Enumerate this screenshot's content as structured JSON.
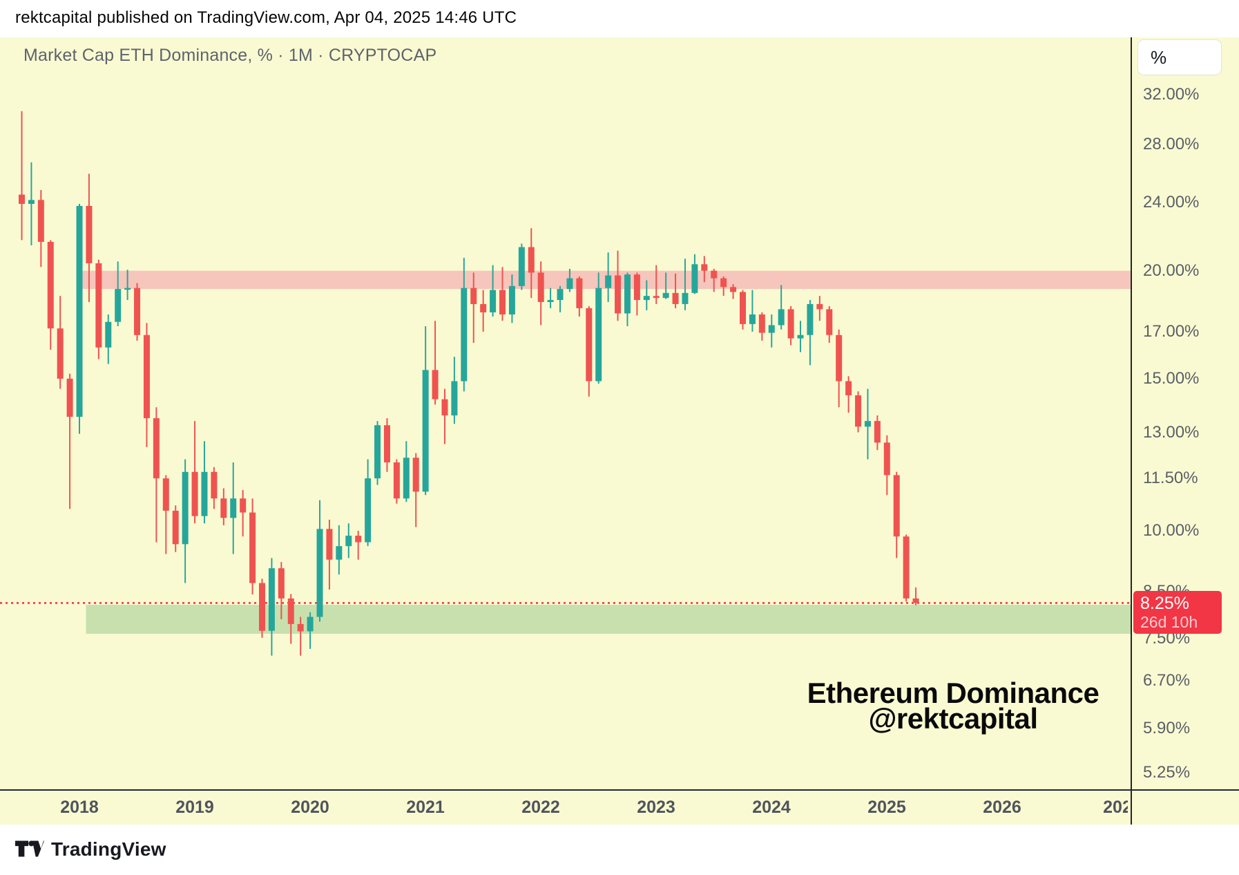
{
  "header": {
    "attribution": "rektcapital published on TradingView.com, Apr 04, 2025 14:46 UTC"
  },
  "chart": {
    "title": "Market Cap ETH Dominance, % · 1M · CRYPTOCAP",
    "watermark": {
      "line1": "Ethereum Dominance",
      "line2": "@rektcapital"
    }
  },
  "price_scale": {
    "unit_button": "%",
    "ticks": [
      {
        "value": 32,
        "label": "32.00%"
      },
      {
        "value": 28,
        "label": "28.00%"
      },
      {
        "value": 24,
        "label": "24.00%"
      },
      {
        "value": 20,
        "label": "20.00%"
      },
      {
        "value": 17,
        "label": "17.00%"
      },
      {
        "value": 15,
        "label": "15.00%"
      },
      {
        "value": 13,
        "label": "13.00%"
      },
      {
        "value": 11.5,
        "label": "11.50%"
      },
      {
        "value": 10,
        "label": "10.00%"
      },
      {
        "value": 8.5,
        "label": "8.50%"
      },
      {
        "value": 7.5,
        "label": "7.50%"
      },
      {
        "value": 6.7,
        "label": "6.70%"
      },
      {
        "value": 5.9,
        "label": "5.90%"
      },
      {
        "value": 5.25,
        "label": "5.25%"
      }
    ],
    "last_price": {
      "value": 8.25,
      "label": "8.25%",
      "countdown": "26d 10h"
    }
  },
  "time_scale": {
    "years": [
      "2018",
      "2019",
      "2020",
      "2021",
      "2022",
      "2023",
      "2024",
      "2025",
      "2026",
      "202"
    ]
  },
  "footer": {
    "brand": "TradingView"
  },
  "colors": {
    "background": "#fafad2",
    "candle_up": "#26a69a",
    "candle_down": "#ef5350",
    "resistance_zone": "#f6c5bb",
    "support_zone": "#c8e0ae",
    "price_line": "#f23645",
    "price_label_bg": "#f23645"
  },
  "chart_data": {
    "type": "candlestick",
    "title": "Market Cap ETH Dominance, % · 1M · CRYPTOCAP",
    "symbol": "CRYPTOCAP ETH Dominance",
    "timeframe": "1M",
    "y_axis": {
      "type": "log",
      "unit": "%",
      "visible_range": [
        5.0,
        37.0
      ],
      "grid": false
    },
    "legend_position": "none",
    "last_price": 8.25,
    "zones": [
      {
        "name": "resistance",
        "value_from": 20.0,
        "value_to": 19.05,
        "start_month": "2018-01"
      },
      {
        "name": "support",
        "value_from": 8.21,
        "value_to": 7.6,
        "start_month": "2018-02"
      }
    ],
    "price_line_value": 8.25,
    "columns": [
      "month",
      "open",
      "high",
      "low",
      "close"
    ],
    "candles": [
      [
        "2017-07",
        24.5,
        30.6,
        21.7,
        23.9
      ],
      [
        "2017-08",
        23.9,
        26.7,
        21.4,
        24.15
      ],
      [
        "2017-09",
        24.15,
        24.8,
        20.2,
        21.6
      ],
      [
        "2017-10",
        21.6,
        21.7,
        16.2,
        17.15
      ],
      [
        "2017-11",
        17.15,
        18.7,
        14.6,
        15.0
      ],
      [
        "2017-12",
        15.0,
        15.2,
        10.6,
        13.55
      ],
      [
        "2018-01",
        13.55,
        23.9,
        12.95,
        23.77
      ],
      [
        "2018-02",
        23.77,
        25.9,
        18.4,
        20.4
      ],
      [
        "2018-03",
        20.4,
        20.6,
        15.8,
        16.3
      ],
      [
        "2018-04",
        16.3,
        17.8,
        15.6,
        17.45
      ],
      [
        "2018-05",
        17.45,
        20.5,
        17.25,
        19.05
      ],
      [
        "2018-06",
        19.05,
        20.05,
        18.5,
        19.1
      ],
      [
        "2018-07",
        19.1,
        19.35,
        16.6,
        16.85
      ],
      [
        "2018-08",
        16.85,
        17.4,
        12.5,
        13.5
      ],
      [
        "2018-09",
        13.5,
        13.9,
        9.7,
        11.5
      ],
      [
        "2018-10",
        11.5,
        11.6,
        9.4,
        10.55
      ],
      [
        "2018-11",
        10.55,
        10.7,
        9.45,
        9.65
      ],
      [
        "2018-12",
        9.65,
        12.1,
        8.7,
        11.7
      ],
      [
        "2019-01",
        11.7,
        13.4,
        10.2,
        10.4
      ],
      [
        "2019-02",
        10.4,
        12.7,
        10.2,
        11.7
      ],
      [
        "2019-03",
        11.7,
        11.85,
        10.6,
        10.9
      ],
      [
        "2019-04",
        10.9,
        11.2,
        10.15,
        10.35
      ],
      [
        "2019-05",
        10.35,
        12.0,
        9.4,
        10.9
      ],
      [
        "2019-06",
        10.9,
        11.15,
        9.85,
        10.5
      ],
      [
        "2019-07",
        10.5,
        10.9,
        8.44,
        8.7
      ],
      [
        "2019-08",
        8.7,
        8.8,
        7.52,
        7.66
      ],
      [
        "2019-09",
        7.66,
        9.3,
        7.17,
        9.05
      ],
      [
        "2019-10",
        9.05,
        9.2,
        7.9,
        8.35
      ],
      [
        "2019-11",
        8.35,
        8.45,
        7.4,
        7.8
      ],
      [
        "2019-12",
        7.8,
        7.95,
        7.17,
        7.65
      ],
      [
        "2020-01",
        7.65,
        8.05,
        7.3,
        7.95
      ],
      [
        "2020-02",
        7.95,
        10.85,
        7.85,
        10.05
      ],
      [
        "2020-03",
        10.05,
        10.3,
        8.55,
        9.26
      ],
      [
        "2020-04",
        9.26,
        10.15,
        8.9,
        9.6
      ],
      [
        "2020-05",
        9.6,
        10.2,
        9.3,
        9.87
      ],
      [
        "2020-06",
        9.87,
        10.0,
        9.26,
        9.7
      ],
      [
        "2020-07",
        9.7,
        12.1,
        9.6,
        11.5
      ],
      [
        "2020-08",
        11.5,
        13.4,
        11.3,
        13.25
      ],
      [
        "2020-09",
        13.25,
        13.5,
        11.7,
        12.0
      ],
      [
        "2020-10",
        12.0,
        12.1,
        10.75,
        10.9
      ],
      [
        "2020-11",
        10.9,
        12.7,
        10.8,
        12.15
      ],
      [
        "2020-12",
        12.15,
        12.3,
        10.1,
        11.1
      ],
      [
        "2021-01",
        11.1,
        17.25,
        11.0,
        15.35
      ],
      [
        "2021-02",
        15.35,
        17.5,
        14.0,
        14.2
      ],
      [
        "2021-03",
        14.2,
        14.6,
        12.6,
        13.6
      ],
      [
        "2021-04",
        13.6,
        15.9,
        13.3,
        14.9
      ],
      [
        "2021-05",
        14.9,
        20.7,
        14.5,
        19.1
      ],
      [
        "2021-06",
        19.1,
        19.9,
        16.5,
        18.3
      ],
      [
        "2021-07",
        18.3,
        19.0,
        17.0,
        17.9
      ],
      [
        "2021-08",
        17.9,
        20.3,
        17.7,
        19.0
      ],
      [
        "2021-09",
        19.0,
        20.2,
        17.5,
        17.8
      ],
      [
        "2021-10",
        17.8,
        19.8,
        17.4,
        19.2
      ],
      [
        "2021-11",
        19.2,
        21.5,
        19.0,
        21.3
      ],
      [
        "2021-12",
        21.3,
        22.4,
        18.6,
        19.9
      ],
      [
        "2022-01",
        19.9,
        20.5,
        17.3,
        18.4
      ],
      [
        "2022-02",
        18.4,
        19.1,
        18.1,
        18.5
      ],
      [
        "2022-03",
        18.5,
        19.2,
        17.9,
        19.05
      ],
      [
        "2022-04",
        19.05,
        20.1,
        18.9,
        19.6
      ],
      [
        "2022-05",
        19.6,
        19.7,
        17.7,
        18.1
      ],
      [
        "2022-06",
        18.1,
        18.2,
        14.3,
        14.9
      ],
      [
        "2022-07",
        14.9,
        19.9,
        14.8,
        19.1
      ],
      [
        "2022-08",
        19.1,
        21.0,
        18.4,
        19.75
      ],
      [
        "2022-09",
        19.75,
        21.1,
        17.5,
        17.85
      ],
      [
        "2022-10",
        17.85,
        19.9,
        17.25,
        19.8
      ],
      [
        "2022-11",
        19.8,
        19.9,
        17.75,
        18.5
      ],
      [
        "2022-12",
        18.5,
        19.5,
        18.0,
        18.7
      ],
      [
        "2023-01",
        18.7,
        20.3,
        18.3,
        18.6
      ],
      [
        "2023-02",
        18.6,
        19.9,
        18.55,
        18.85
      ],
      [
        "2023-03",
        18.85,
        19.85,
        18.1,
        18.3
      ],
      [
        "2023-04",
        18.3,
        20.65,
        18.0,
        18.85
      ],
      [
        "2023-05",
        18.85,
        20.9,
        18.8,
        20.35
      ],
      [
        "2023-06",
        20.35,
        20.8,
        19.4,
        20.0
      ],
      [
        "2023-07",
        20.0,
        20.1,
        18.9,
        19.6
      ],
      [
        "2023-08",
        19.6,
        19.7,
        18.7,
        19.15
      ],
      [
        "2023-09",
        19.15,
        19.3,
        18.55,
        18.9
      ],
      [
        "2023-10",
        18.9,
        19.0,
        17.1,
        17.35
      ],
      [
        "2023-11",
        17.35,
        19.0,
        17.0,
        17.8
      ],
      [
        "2023-12",
        17.8,
        17.9,
        16.6,
        16.95
      ],
      [
        "2024-01",
        16.95,
        17.8,
        16.3,
        17.3
      ],
      [
        "2024-02",
        17.3,
        19.25,
        17.1,
        18.05
      ],
      [
        "2024-03",
        18.05,
        18.2,
        16.4,
        16.7
      ],
      [
        "2024-04",
        16.7,
        17.5,
        16.1,
        16.85
      ],
      [
        "2024-05",
        16.85,
        18.5,
        15.55,
        18.3
      ],
      [
        "2024-06",
        18.3,
        18.7,
        17.5,
        18.05
      ],
      [
        "2024-07",
        18.05,
        18.2,
        16.5,
        16.85
      ],
      [
        "2024-08",
        16.85,
        17.1,
        13.9,
        14.9
      ],
      [
        "2024-09",
        14.9,
        15.1,
        13.7,
        14.35
      ],
      [
        "2024-10",
        14.35,
        14.5,
        13.0,
        13.2
      ],
      [
        "2024-11",
        13.2,
        14.6,
        12.1,
        13.4
      ],
      [
        "2024-12",
        13.4,
        13.6,
        12.4,
        12.65
      ],
      [
        "2025-01",
        12.65,
        12.9,
        11.0,
        11.6
      ],
      [
        "2025-02",
        11.6,
        11.7,
        9.3,
        9.85
      ],
      [
        "2025-03",
        9.85,
        9.9,
        8.28,
        8.35
      ],
      [
        "2025-04",
        8.35,
        8.6,
        8.2,
        8.25
      ]
    ]
  }
}
